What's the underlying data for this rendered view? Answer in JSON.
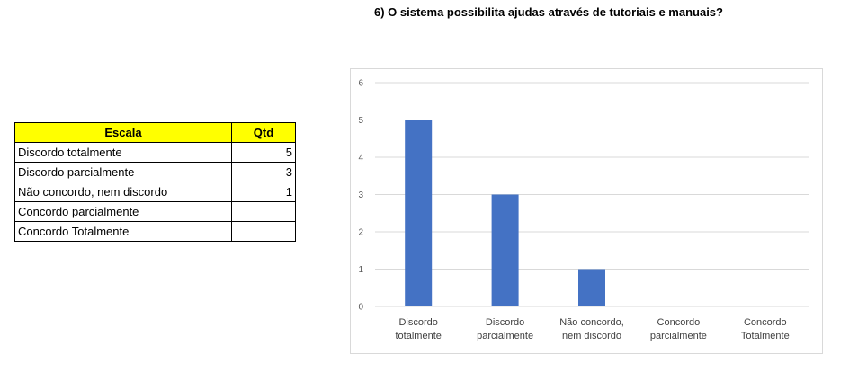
{
  "title": "6) O sistema possibilita ajudas através de tutoriais e manuais?",
  "table": {
    "headers": [
      "Escala",
      "Qtd"
    ],
    "rows": [
      {
        "label": "Discordo totalmente",
        "qtd": "5"
      },
      {
        "label": "Discordo parcialmente",
        "qtd": "3"
      },
      {
        "label": "Não concordo, nem discordo",
        "qtd": "1"
      },
      {
        "label": "Concordo parcialmente",
        "qtd": ""
      },
      {
        "label": "Concordo Totalmente",
        "qtd": ""
      }
    ]
  },
  "chart_data": {
    "type": "bar",
    "categories": [
      [
        "Discordo",
        "totalmente"
      ],
      [
        "Discordo",
        "parcialmente"
      ],
      [
        "Não concordo,",
        "nem discordo"
      ],
      [
        "Concordo",
        "parcialmente"
      ],
      [
        "Concordo",
        "Totalmente"
      ]
    ],
    "values": [
      5,
      3,
      1,
      0,
      0
    ],
    "yticks": [
      "0",
      "1",
      "2",
      "3",
      "4",
      "5",
      "6"
    ],
    "ylim": [
      0,
      6
    ],
    "grid": true,
    "bar_color": "#4472c4",
    "grid_color": "#d9d9d9"
  }
}
